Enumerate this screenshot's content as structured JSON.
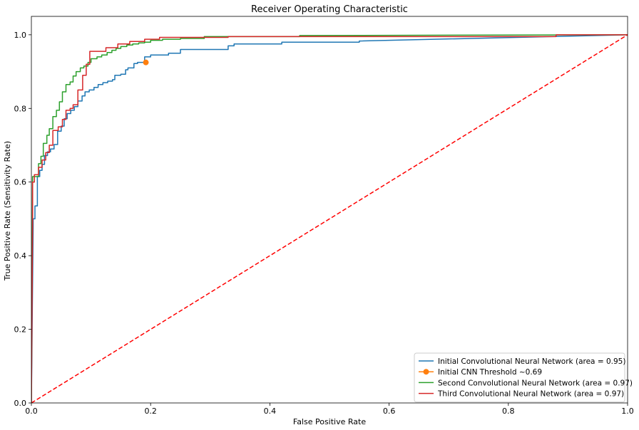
{
  "chart_data": {
    "type": "line",
    "title": "Receiver Operating Characteristic",
    "xlabel": "False Positive Rate",
    "ylabel": "True Positive Rate (Sensitivity Rate)",
    "xlim": [
      0,
      1
    ],
    "ylim": [
      0,
      1.05
    ],
    "xticks": [
      "0.0",
      "0.2",
      "0.4",
      "0.6",
      "0.8",
      "1.0"
    ],
    "yticks": [
      "0.0",
      "0.2",
      "0.4",
      "0.6",
      "0.8",
      "1.0"
    ],
    "grid": false,
    "legend_position": "bottom-right",
    "series": [
      {
        "name": "Initial Convolutional Neural Network (area = 0.95)",
        "color": "#1f77b4",
        "x": [
          0,
          0.003,
          0.003,
          0.006,
          0.006,
          0.01,
          0.01,
          0.014,
          0.014,
          0.018,
          0.018,
          0.022,
          0.022,
          0.027,
          0.027,
          0.032,
          0.032,
          0.038,
          0.038,
          0.044,
          0.044,
          0.05,
          0.05,
          0.055,
          0.055,
          0.06,
          0.06,
          0.066,
          0.066,
          0.072,
          0.072,
          0.078,
          0.078,
          0.085,
          0.085,
          0.09,
          0.09,
          0.097,
          0.097,
          0.105,
          0.105,
          0.112,
          0.112,
          0.12,
          0.12,
          0.128,
          0.128,
          0.136,
          0.136,
          0.14,
          0.14,
          0.15,
          0.15,
          0.158,
          0.158,
          0.162,
          0.162,
          0.172,
          0.172,
          0.178,
          0.178,
          0.19,
          0.19,
          0.2,
          0.2,
          0.23,
          0.23,
          0.25,
          0.25,
          0.33,
          0.33,
          0.34,
          0.34,
          0.42,
          0.42,
          0.55,
          0.55,
          1
        ],
        "y": [
          0,
          0.48,
          0.5,
          0.5,
          0.535,
          0.535,
          0.615,
          0.615,
          0.632,
          0.632,
          0.648,
          0.648,
          0.672,
          0.672,
          0.682,
          0.682,
          0.69,
          0.69,
          0.702,
          0.702,
          0.738,
          0.738,
          0.752,
          0.752,
          0.772,
          0.772,
          0.786,
          0.786,
          0.795,
          0.795,
          0.805,
          0.805,
          0.82,
          0.82,
          0.834,
          0.834,
          0.845,
          0.845,
          0.85,
          0.85,
          0.857,
          0.857,
          0.865,
          0.865,
          0.87,
          0.87,
          0.874,
          0.874,
          0.878,
          0.878,
          0.89,
          0.89,
          0.893,
          0.893,
          0.905,
          0.905,
          0.91,
          0.91,
          0.922,
          0.922,
          0.925,
          0.925,
          0.94,
          0.94,
          0.945,
          0.945,
          0.95,
          0.95,
          0.96,
          0.96,
          0.97,
          0.97,
          0.975,
          0.975,
          0.98,
          0.98,
          0.983,
          1.0
        ]
      },
      {
        "name": "Initial CNN Threshold ~0.69",
        "color": "#ff7f0e",
        "marker": "circle",
        "x": [
          0.192
        ],
        "y": [
          0.925
        ]
      },
      {
        "name": "Second Convolutional Neural Network (area = 0.97)",
        "color": "#2ca02c",
        "x": [
          0,
          0.002,
          0.002,
          0.012,
          0.012,
          0.016,
          0.016,
          0.02,
          0.02,
          0.026,
          0.026,
          0.03,
          0.03,
          0.036,
          0.036,
          0.042,
          0.042,
          0.047,
          0.047,
          0.052,
          0.052,
          0.058,
          0.058,
          0.065,
          0.065,
          0.07,
          0.07,
          0.075,
          0.075,
          0.082,
          0.082,
          0.088,
          0.088,
          0.095,
          0.095,
          0.1,
          0.1,
          0.11,
          0.11,
          0.118,
          0.118,
          0.127,
          0.127,
          0.135,
          0.135,
          0.142,
          0.142,
          0.15,
          0.15,
          0.16,
          0.16,
          0.17,
          0.17,
          0.18,
          0.18,
          0.19,
          0.19,
          0.2,
          0.2,
          0.22,
          0.22,
          0.25,
          0.25,
          0.29,
          0.29,
          0.45,
          0.45,
          1
        ],
        "y": [
          0,
          0.61,
          0.615,
          0.615,
          0.65,
          0.65,
          0.67,
          0.67,
          0.705,
          0.705,
          0.727,
          0.727,
          0.745,
          0.745,
          0.778,
          0.778,
          0.795,
          0.795,
          0.818,
          0.818,
          0.845,
          0.845,
          0.865,
          0.865,
          0.872,
          0.872,
          0.888,
          0.888,
          0.9,
          0.9,
          0.91,
          0.91,
          0.915,
          0.915,
          0.925,
          0.925,
          0.935,
          0.935,
          0.94,
          0.94,
          0.945,
          0.945,
          0.952,
          0.952,
          0.958,
          0.958,
          0.963,
          0.963,
          0.968,
          0.968,
          0.972,
          0.972,
          0.975,
          0.975,
          0.978,
          0.978,
          0.98,
          0.98,
          0.985,
          0.985,
          0.988,
          0.988,
          0.99,
          0.99,
          0.995,
          0.995,
          0.998,
          1.0
        ]
      },
      {
        "name": "Third Convolutional Neural Network (area = 0.97)",
        "color": "#d62728",
        "x": [
          0,
          0.002,
          0.002,
          0.005,
          0.005,
          0.012,
          0.012,
          0.018,
          0.018,
          0.024,
          0.024,
          0.03,
          0.03,
          0.036,
          0.036,
          0.045,
          0.045,
          0.052,
          0.052,
          0.058,
          0.058,
          0.065,
          0.065,
          0.07,
          0.07,
          0.078,
          0.078,
          0.086,
          0.086,
          0.092,
          0.092,
          0.098,
          0.098,
          0.125,
          0.125,
          0.145,
          0.145,
          0.165,
          0.165,
          0.19,
          0.19,
          0.215,
          0.215,
          0.33,
          0.33,
          0.88,
          0.88,
          1
        ],
        "y": [
          0,
          0.48,
          0.6,
          0.6,
          0.62,
          0.62,
          0.64,
          0.64,
          0.66,
          0.66,
          0.68,
          0.68,
          0.7,
          0.7,
          0.74,
          0.74,
          0.75,
          0.75,
          0.77,
          0.77,
          0.795,
          0.795,
          0.8,
          0.8,
          0.81,
          0.81,
          0.85,
          0.85,
          0.89,
          0.89,
          0.92,
          0.92,
          0.955,
          0.955,
          0.965,
          0.965,
          0.975,
          0.975,
          0.982,
          0.982,
          0.988,
          0.988,
          0.993,
          0.993,
          0.995,
          0.995,
          1.0,
          1.0
        ]
      },
      {
        "name": "",
        "color": "#ff0000",
        "dashed": true,
        "x": [
          0,
          1
        ],
        "y": [
          0,
          1
        ]
      }
    ],
    "legend_order": [
      0,
      1,
      2,
      3
    ]
  }
}
